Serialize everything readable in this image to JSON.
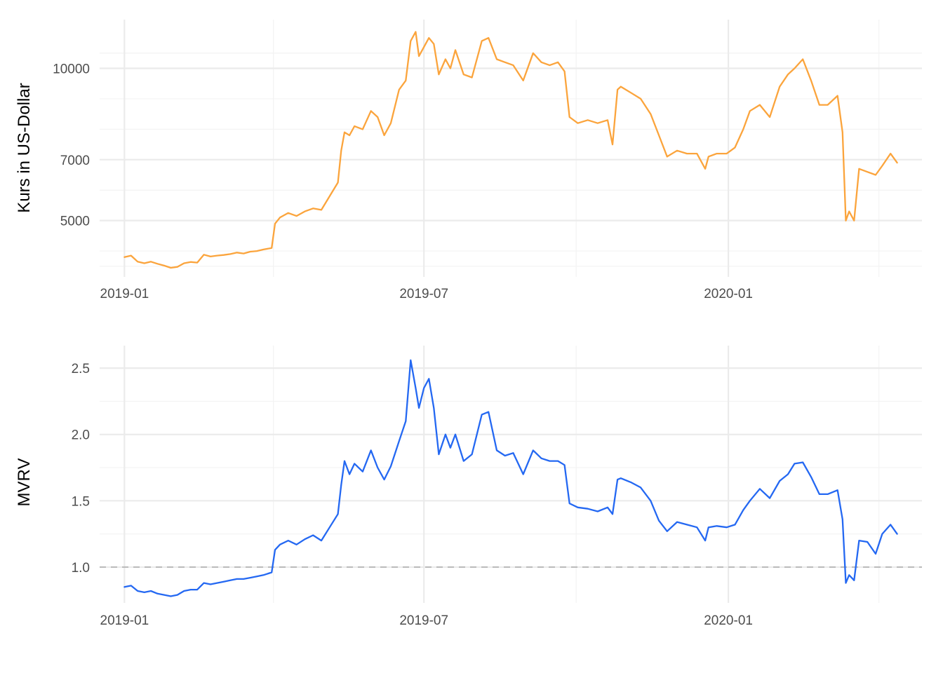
{
  "chart_data": [
    {
      "type": "line",
      "title": "",
      "xlabel": "",
      "ylabel": "Kurs in US-Dollar",
      "x_ticks": [
        "2019-01",
        "2019-07",
        "2020-01"
      ],
      "x_tick_dates": [
        "2019-01-01",
        "2019-07-01",
        "2020-01-01"
      ],
      "x_minor_dates": [
        "2019-04-01",
        "2019-10-01",
        "2020-04-01"
      ],
      "xlim": [
        "2018-12-17",
        "2020-04-27"
      ],
      "y_ticks": [
        5000,
        7000,
        10000
      ],
      "y_minor": [
        3500,
        4000,
        6000,
        8000,
        9000,
        10500
      ],
      "ylim": [
        3150,
        11600
      ],
      "color": "#FBA43C",
      "grid": true,
      "series": [
        {
          "x": [
            "2019-01-01",
            "2019-01-05",
            "2019-01-09",
            "2019-01-13",
            "2019-01-17",
            "2019-01-21",
            "2019-01-25",
            "2019-01-29",
            "2019-02-02",
            "2019-02-06",
            "2019-02-10",
            "2019-02-14",
            "2019-02-18",
            "2019-02-22",
            "2019-02-26",
            "2019-03-02",
            "2019-03-06",
            "2019-03-10",
            "2019-03-14",
            "2019-03-18",
            "2019-03-22",
            "2019-03-26",
            "2019-03-31",
            "2019-04-02",
            "2019-04-05",
            "2019-04-10",
            "2019-04-15",
            "2019-04-20",
            "2019-04-25",
            "2019-04-30",
            "2019-05-05",
            "2019-05-10",
            "2019-05-12",
            "2019-05-14",
            "2019-05-17",
            "2019-05-20",
            "2019-05-25",
            "2019-05-30",
            "2019-06-03",
            "2019-06-07",
            "2019-06-11",
            "2019-06-16",
            "2019-06-20",
            "2019-06-23",
            "2019-06-26",
            "2019-06-28",
            "2019-07-01",
            "2019-07-04",
            "2019-07-07",
            "2019-07-10",
            "2019-07-14",
            "2019-07-17",
            "2019-07-20",
            "2019-07-25",
            "2019-07-30",
            "2019-08-05",
            "2019-08-09",
            "2019-08-14",
            "2019-08-19",
            "2019-08-24",
            "2019-08-30",
            "2019-09-05",
            "2019-09-10",
            "2019-09-15",
            "2019-09-20",
            "2019-09-24",
            "2019-09-27",
            "2019-10-02",
            "2019-10-08",
            "2019-10-14",
            "2019-10-20",
            "2019-10-23",
            "2019-10-26",
            "2019-10-28",
            "2019-11-03",
            "2019-11-09",
            "2019-11-15",
            "2019-11-20",
            "2019-11-25",
            "2019-12-01",
            "2019-12-07",
            "2019-12-13",
            "2019-12-18",
            "2019-12-20",
            "2019-12-25",
            "2019-12-31",
            "2020-01-05",
            "2020-01-10",
            "2020-01-14",
            "2020-01-20",
            "2020-01-26",
            "2020-02-01",
            "2020-02-06",
            "2020-02-10",
            "2020-02-15",
            "2020-02-20",
            "2020-02-25",
            "2020-03-01",
            "2020-03-07",
            "2020-03-10",
            "2020-03-12",
            "2020-03-14",
            "2020-03-17",
            "2020-03-20",
            "2020-03-25",
            "2020-03-30",
            "2020-04-03",
            "2020-04-08",
            "2020-04-12"
          ],
          "values": [
            3800,
            3850,
            3650,
            3600,
            3650,
            3580,
            3520,
            3450,
            3480,
            3600,
            3640,
            3620,
            3880,
            3820,
            3850,
            3870,
            3900,
            3950,
            3920,
            3980,
            4000,
            4050,
            4100,
            4900,
            5100,
            5250,
            5150,
            5300,
            5400,
            5350,
            5800,
            6250,
            7300,
            7900,
            7800,
            8100,
            8000,
            8600,
            8400,
            7800,
            8200,
            9300,
            9600,
            10900,
            11200,
            10400,
            10700,
            11000,
            10800,
            9800,
            10300,
            10000,
            10600,
            9800,
            9700,
            10900,
            11000,
            10300,
            10200,
            10100,
            9600,
            10500,
            10200,
            10100,
            10200,
            9900,
            8400,
            8200,
            8300,
            8200,
            8300,
            7500,
            9300,
            9400,
            9200,
            9000,
            8500,
            7800,
            7100,
            7300,
            7200,
            7200,
            6700,
            7100,
            7200,
            7200,
            7400,
            8000,
            8600,
            8800,
            8400,
            9400,
            9800,
            10000,
            10300,
            9600,
            8800,
            8800,
            9100,
            7900,
            5000,
            5300,
            5000,
            6700,
            6600,
            6500,
            6800,
            7200,
            6900
          ]
        }
      ]
    },
    {
      "type": "line",
      "title": "",
      "xlabel": "",
      "ylabel": "MVRV",
      "x_ticks": [
        "2019-01",
        "2019-07",
        "2020-01"
      ],
      "x_tick_dates": [
        "2019-01-01",
        "2019-07-01",
        "2020-01-01"
      ],
      "x_minor_dates": [
        "2019-04-01",
        "2019-10-01",
        "2020-04-01"
      ],
      "xlim": [
        "2018-12-17",
        "2020-04-27"
      ],
      "y_ticks": [
        "1.0",
        "1.5",
        "2.0",
        "2.5"
      ],
      "y_tick_values": [
        1.0,
        1.5,
        2.0,
        2.5
      ],
      "y_minor": [
        1.25,
        1.75,
        2.25
      ],
      "ylim": [
        0.73,
        2.67
      ],
      "reference_line": 1.0,
      "color": "#2468F2",
      "grid": true,
      "series": [
        {
          "x": [
            "2019-01-01",
            "2019-01-05",
            "2019-01-09",
            "2019-01-13",
            "2019-01-17",
            "2019-01-21",
            "2019-01-25",
            "2019-01-29",
            "2019-02-02",
            "2019-02-06",
            "2019-02-10",
            "2019-02-14",
            "2019-02-18",
            "2019-02-22",
            "2019-02-26",
            "2019-03-02",
            "2019-03-06",
            "2019-03-10",
            "2019-03-14",
            "2019-03-18",
            "2019-03-22",
            "2019-03-26",
            "2019-03-31",
            "2019-04-02",
            "2019-04-05",
            "2019-04-10",
            "2019-04-15",
            "2019-04-20",
            "2019-04-25",
            "2019-04-30",
            "2019-05-05",
            "2019-05-10",
            "2019-05-12",
            "2019-05-14",
            "2019-05-17",
            "2019-05-20",
            "2019-05-25",
            "2019-05-30",
            "2019-06-03",
            "2019-06-07",
            "2019-06-11",
            "2019-06-16",
            "2019-06-20",
            "2019-06-23",
            "2019-06-26",
            "2019-06-28",
            "2019-07-01",
            "2019-07-04",
            "2019-07-07",
            "2019-07-10",
            "2019-07-14",
            "2019-07-17",
            "2019-07-20",
            "2019-07-25",
            "2019-07-30",
            "2019-08-05",
            "2019-08-09",
            "2019-08-14",
            "2019-08-19",
            "2019-08-24",
            "2019-08-30",
            "2019-09-05",
            "2019-09-10",
            "2019-09-15",
            "2019-09-20",
            "2019-09-24",
            "2019-09-27",
            "2019-10-02",
            "2019-10-08",
            "2019-10-14",
            "2019-10-20",
            "2019-10-23",
            "2019-10-26",
            "2019-10-28",
            "2019-11-03",
            "2019-11-09",
            "2019-11-15",
            "2019-11-20",
            "2019-11-25",
            "2019-12-01",
            "2019-12-07",
            "2019-12-13",
            "2019-12-18",
            "2019-12-20",
            "2019-12-25",
            "2019-12-31",
            "2020-01-05",
            "2020-01-10",
            "2020-01-14",
            "2020-01-20",
            "2020-01-26",
            "2020-02-01",
            "2020-02-06",
            "2020-02-10",
            "2020-02-15",
            "2020-02-20",
            "2020-02-25",
            "2020-03-01",
            "2020-03-07",
            "2020-03-10",
            "2020-03-12",
            "2020-03-14",
            "2020-03-17",
            "2020-03-20",
            "2020-03-25",
            "2020-03-30",
            "2020-04-03",
            "2020-04-08",
            "2020-04-12"
          ],
          "values": [
            0.85,
            0.86,
            0.82,
            0.81,
            0.82,
            0.8,
            0.79,
            0.78,
            0.79,
            0.82,
            0.83,
            0.83,
            0.88,
            0.87,
            0.88,
            0.89,
            0.9,
            0.91,
            0.91,
            0.92,
            0.93,
            0.94,
            0.96,
            1.13,
            1.17,
            1.2,
            1.17,
            1.21,
            1.24,
            1.2,
            1.3,
            1.4,
            1.62,
            1.8,
            1.7,
            1.78,
            1.72,
            1.88,
            1.75,
            1.66,
            1.76,
            1.95,
            2.1,
            2.56,
            2.35,
            2.2,
            2.35,
            2.42,
            2.2,
            1.85,
            2.0,
            1.9,
            2.0,
            1.8,
            1.85,
            2.15,
            2.17,
            1.88,
            1.84,
            1.86,
            1.7,
            1.88,
            1.82,
            1.8,
            1.8,
            1.77,
            1.48,
            1.45,
            1.44,
            1.42,
            1.45,
            1.4,
            1.66,
            1.67,
            1.64,
            1.6,
            1.5,
            1.35,
            1.27,
            1.34,
            1.32,
            1.3,
            1.2,
            1.3,
            1.31,
            1.3,
            1.32,
            1.43,
            1.5,
            1.59,
            1.52,
            1.65,
            1.7,
            1.78,
            1.79,
            1.68,
            1.55,
            1.55,
            1.58,
            1.36,
            0.88,
            0.94,
            0.9,
            1.2,
            1.19,
            1.1,
            1.25,
            1.32,
            1.25
          ]
        }
      ]
    }
  ]
}
